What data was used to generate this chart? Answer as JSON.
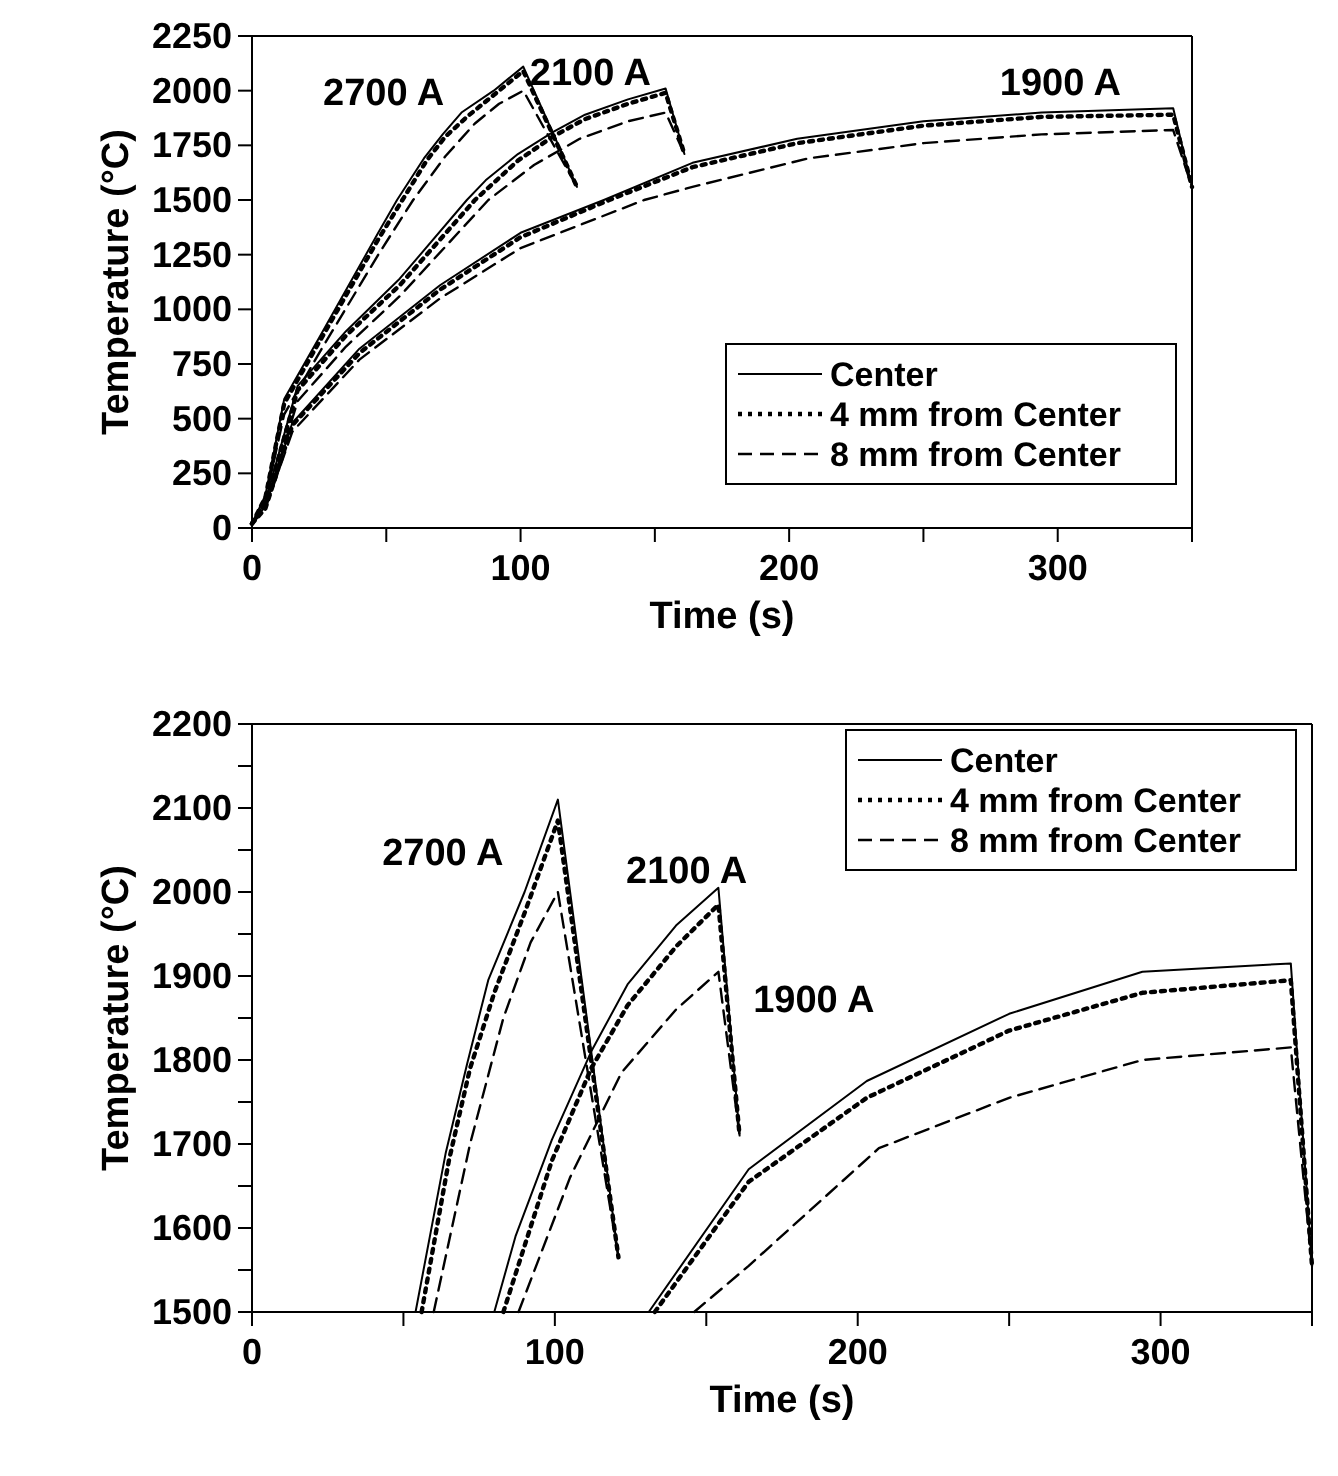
{
  "chart_data": [
    {
      "type": "line",
      "xlabel": "Time (s)",
      "ylabel": "Temperature (°C)",
      "xlim": [
        0,
        350
      ],
      "ylim": [
        0,
        2250
      ],
      "xticks": [
        0,
        {
          "value": 50,
          "label": null
        },
        100,
        {
          "value": 150,
          "label": null
        },
        200,
        {
          "value": 250,
          "label": null
        },
        300,
        {
          "value": 350,
          "label": null
        }
      ],
      "yticks": [
        0,
        250,
        500,
        750,
        1000,
        1250,
        1500,
        1750,
        2000,
        2250
      ],
      "legend": "bottom right",
      "annotations": [
        "2700 A",
        "2100 A",
        "1900 A"
      ],
      "series": [
        {
          "name": "Center",
          "color": "#000000",
          "line_style": "solid",
          "x": [
            0,
            5,
            12,
            25,
            47,
            54,
            64,
            71,
            78,
            90,
            101,
            121
          ],
          "values": [
            20,
            150,
            590,
            870,
            1350,
            1500,
            1690,
            1800,
            1900,
            2000,
            2110,
            1560
          ]
        },
        {
          "name": "4 mm from Center",
          "color": "#000000",
          "line_style": "dotted",
          "x": [
            0,
            5,
            12,
            25,
            47,
            56,
            65,
            72,
            80,
            90,
            101,
            121
          ],
          "values": [
            20,
            140,
            570,
            850,
            1320,
            1500,
            1680,
            1790,
            1880,
            1980,
            2090,
            1560
          ]
        },
        {
          "name": "8 mm from Center",
          "color": "#000000",
          "line_style": "dashed",
          "x": [
            0,
            5,
            12,
            25,
            47,
            60,
            72,
            83,
            92,
            101,
            121
          ],
          "values": [
            20,
            130,
            520,
            800,
            1250,
            1500,
            1700,
            1850,
            1940,
            2000,
            1560
          ]
        },
        {
          "color": "#000000",
          "line_style": "solid",
          "x": [
            0,
            5,
            17,
            35,
            55,
            80,
            87,
            99,
            112,
            124,
            140,
            154,
            161
          ],
          "values": [
            20,
            120,
            650,
            900,
            1140,
            1500,
            1590,
            1710,
            1810,
            1890,
            1960,
            2010,
            1710
          ]
        },
        {
          "color": "#000000",
          "line_style": "dotted",
          "x": [
            0,
            5,
            17,
            35,
            55,
            83,
            99,
            112,
            124,
            140,
            154,
            161
          ],
          "values": [
            20,
            110,
            630,
            880,
            1110,
            1500,
            1680,
            1790,
            1870,
            1940,
            1990,
            1710
          ]
        },
        {
          "color": "#000000",
          "line_style": "dashed",
          "x": [
            0,
            5,
            17,
            35,
            55,
            88,
            105,
            122,
            140,
            154,
            161
          ],
          "values": [
            20,
            100,
            580,
            830,
            1060,
            1500,
            1660,
            1780,
            1860,
            1900,
            1710
          ]
        },
        {
          "color": "#000000",
          "line_style": "solid",
          "x": [
            0,
            5,
            15,
            40,
            70,
            100,
            131,
            164,
            203,
            250,
            294,
            343,
            350
          ],
          "values": [
            20,
            100,
            480,
            820,
            1110,
            1350,
            1500,
            1670,
            1780,
            1860,
            1900,
            1920,
            1560
          ]
        },
        {
          "color": "#000000",
          "line_style": "dotted",
          "x": [
            0,
            5,
            15,
            40,
            70,
            100,
            133,
            164,
            203,
            250,
            294,
            343,
            350
          ],
          "values": [
            20,
            90,
            470,
            800,
            1090,
            1330,
            1500,
            1650,
            1760,
            1840,
            1880,
            1890,
            1560
          ]
        },
        {
          "color": "#000000",
          "line_style": "dashed",
          "x": [
            0,
            5,
            15,
            40,
            70,
            100,
            146,
            164,
            207,
            250,
            294,
            343,
            350
          ],
          "values": [
            20,
            90,
            440,
            770,
            1050,
            1280,
            1500,
            1560,
            1690,
            1760,
            1800,
            1820,
            1560
          ]
        }
      ]
    },
    {
      "type": "line",
      "xlabel": "Time (s)",
      "ylabel": "Temperature (°C)",
      "xlim": [
        0,
        350
      ],
      "ylim": [
        1500,
        2200
      ],
      "xticks": [
        0,
        {
          "value": 50,
          "label": null
        },
        100,
        {
          "value": 150,
          "label": null
        },
        200,
        {
          "value": 250,
          "label": null
        },
        300,
        {
          "value": 350,
          "label": null
        }
      ],
      "yticks": [
        1500,
        {
          "value": 1550,
          "label": null
        },
        1600,
        {
          "value": 1650,
          "label": null
        },
        1700,
        {
          "value": 1750,
          "label": null
        },
        1800,
        {
          "value": 1850,
          "label": null
        },
        1900,
        {
          "value": 1950,
          "label": null
        },
        2000,
        {
          "value": 2050,
          "label": null
        },
        2100,
        {
          "value": 2150,
          "label": null
        },
        2200
      ],
      "legend": "top right",
      "annotations": [
        "2700 A",
        "2100 A",
        "1900 A"
      ],
      "series": [
        {
          "name": "Center",
          "color": "#000000",
          "line_style": "solid",
          "x": [
            54,
            64,
            71,
            78,
            90,
            101,
            121
          ],
          "values": [
            1500,
            1690,
            1795,
            1895,
            2000,
            2110,
            1565
          ]
        },
        {
          "name": "4 mm from Center",
          "color": "#000000",
          "line_style": "dotted",
          "x": [
            56,
            65,
            72,
            80,
            90,
            101,
            121
          ],
          "values": [
            1500,
            1680,
            1790,
            1880,
            1975,
            2085,
            1565
          ]
        },
        {
          "name": "8 mm from Center",
          "color": "#000000",
          "line_style": "dashed",
          "x": [
            60,
            72,
            83,
            92,
            101,
            121
          ],
          "values": [
            1500,
            1700,
            1850,
            1940,
            2000,
            1565
          ]
        },
        {
          "color": "#000000",
          "line_style": "solid",
          "x": [
            80,
            87,
            99,
            112,
            124,
            140,
            154,
            161
          ],
          "values": [
            1500,
            1590,
            1705,
            1810,
            1890,
            1960,
            2005,
            1710
          ]
        },
        {
          "color": "#000000",
          "line_style": "dotted",
          "x": [
            83,
            99,
            112,
            124,
            140,
            154,
            161
          ],
          "values": [
            1500,
            1680,
            1790,
            1865,
            1935,
            1985,
            1710
          ]
        },
        {
          "color": "#000000",
          "line_style": "dashed",
          "x": [
            88,
            105,
            122,
            140,
            154,
            161
          ],
          "values": [
            1500,
            1660,
            1785,
            1860,
            1905,
            1710
          ]
        },
        {
          "color": "#000000",
          "line_style": "solid",
          "x": [
            131,
            164,
            203,
            250,
            294,
            343,
            350
          ],
          "values": [
            1500,
            1670,
            1775,
            1855,
            1905,
            1915,
            1555
          ]
        },
        {
          "color": "#000000",
          "line_style": "dotted",
          "x": [
            133,
            164,
            203,
            250,
            294,
            343,
            350
          ],
          "values": [
            1500,
            1655,
            1755,
            1835,
            1880,
            1895,
            1555
          ]
        },
        {
          "color": "#000000",
          "line_style": "dashed",
          "x": [
            146,
            164,
            207,
            250,
            294,
            343,
            350
          ],
          "values": [
            1500,
            1555,
            1695,
            1755,
            1800,
            1815,
            1555
          ]
        }
      ]
    }
  ]
}
